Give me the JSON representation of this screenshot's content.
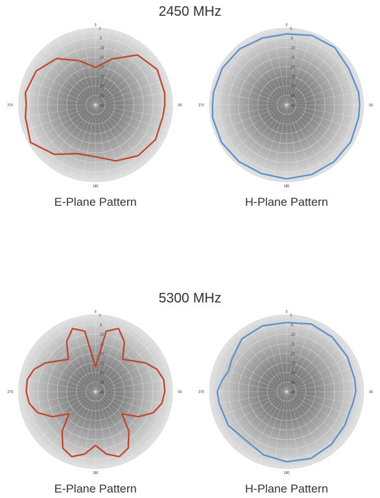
{
  "chart_data": [
    {
      "type": "polar-line",
      "title": "2450 MHz",
      "subtitle": "E-Plane Pattern",
      "angle_labels": [
        "0",
        "90",
        "180",
        "270"
      ],
      "radial_ticks": [
        "0",
        "-5",
        "-10",
        "-15",
        "-20",
        "-25",
        "-30",
        "-35",
        "-40"
      ],
      "rlim": [
        -40,
        0
      ],
      "color": "#c0452c",
      "series": [
        {
          "theta": [
            0,
            20,
            40,
            60,
            80,
            90,
            100,
            120,
            140,
            160,
            180,
            200,
            220,
            240,
            260,
            270,
            280,
            300,
            320,
            340,
            360
          ],
          "r": [
            -20.5,
            -14.5,
            -6,
            -3,
            -3.5,
            -4,
            -4.5,
            -4,
            -5.5,
            -9,
            -13,
            -13,
            -6.5,
            -1,
            -3,
            -4,
            -3,
            -4.5,
            -8.5,
            -15.5,
            -20.5
          ]
        }
      ]
    },
    {
      "type": "polar-line",
      "title": "2450 MHz",
      "subtitle": "H-Plane Pattern",
      "angle_labels": [
        "0",
        "90",
        "180",
        "270"
      ],
      "radial_ticks": [
        "0",
        "-5",
        "-10",
        "-15",
        "-20",
        "-25",
        "-30",
        "-35",
        "-40"
      ],
      "rlim": [
        -40,
        0
      ],
      "color": "#5b8fce",
      "series": [
        {
          "theta": [
            0,
            20,
            40,
            60,
            80,
            90,
            100,
            120,
            140,
            160,
            180,
            200,
            220,
            240,
            260,
            270,
            280,
            300,
            320,
            340,
            360
          ],
          "r": [
            -3,
            -1.5,
            -1,
            -2.5,
            -2,
            -2,
            -2,
            -1.5,
            -1.5,
            -1.5,
            -1.5,
            -2,
            -1.5,
            -1,
            -1,
            -1.5,
            -1.5,
            -1.5,
            -2,
            -3,
            -3
          ]
        }
      ]
    },
    {
      "type": "polar-line",
      "title": "5300 MHz",
      "subtitle": "E-Plane Pattern",
      "angle_labels": [
        "0",
        "90",
        "180",
        "270"
      ],
      "radial_ticks": [
        "0",
        "-5",
        "-10",
        "-15",
        "-20",
        "-25",
        "-30",
        "-35",
        "-40"
      ],
      "rlim": [
        -40,
        0
      ],
      "color": "#c0452c",
      "series": [
        {
          "theta": [
            0,
            10,
            20,
            30,
            40,
            50,
            60,
            70,
            80,
            90,
            100,
            110,
            120,
            130,
            140,
            150,
            160,
            170,
            180,
            190,
            200,
            210,
            220,
            230,
            240,
            250,
            260,
            270,
            280,
            290,
            300,
            310,
            320,
            330,
            340,
            350,
            360
          ],
          "r": [
            -27,
            -8,
            -5,
            -10,
            -18,
            -15,
            -10,
            -6,
            -4,
            -4,
            -5,
            -8,
            -14,
            -22,
            -13,
            -6,
            -4,
            -7,
            -12,
            -7,
            -4,
            -6,
            -13,
            -22,
            -14,
            -8,
            -5,
            -4,
            -4,
            -6,
            -10,
            -15,
            -18,
            -10,
            -5,
            -8,
            -27
          ]
        }
      ]
    },
    {
      "type": "polar-line",
      "title": "5300 MHz",
      "subtitle": "H-Plane Pattern",
      "angle_labels": [
        "0",
        "90",
        "180",
        "270"
      ],
      "radial_ticks": [
        "0",
        "-5",
        "-10",
        "-15",
        "-20",
        "-25",
        "-30",
        "-35",
        "-40"
      ],
      "rlim": [
        -40,
        0
      ],
      "color": "#5b8fce",
      "series": [
        {
          "theta": [
            0,
            20,
            40,
            60,
            80,
            90,
            100,
            120,
            140,
            160,
            180,
            200,
            220,
            240,
            260,
            270,
            280,
            290,
            300,
            310,
            320,
            340,
            360
          ],
          "r": [
            -4,
            -2.5,
            -3,
            -3.5,
            -4,
            -4,
            -5,
            -5,
            -4,
            -3,
            -3.5,
            -5,
            -7,
            -5,
            -4.5,
            -4,
            -6,
            -8,
            -7,
            -6,
            -4,
            -3.5,
            -4
          ]
        }
      ]
    }
  ]
}
